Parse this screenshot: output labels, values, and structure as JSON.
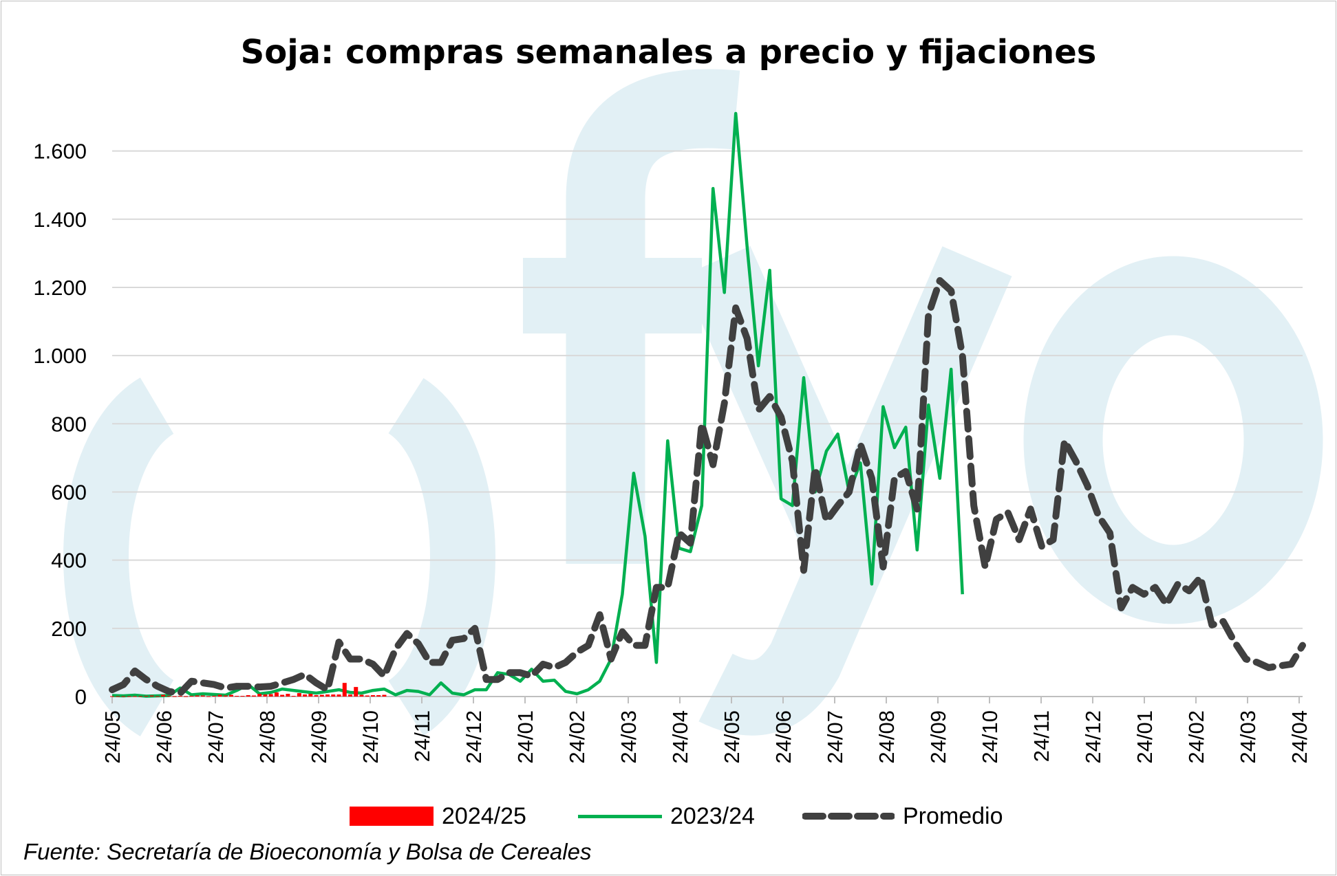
{
  "chart_data": {
    "type": "line",
    "title": "Soja: compras semanales a precio y fijaciones",
    "source": "Fuente: Secretaría de Bioeconomía y Bolsa de Cereales",
    "ylim": [
      0,
      1700
    ],
    "yticks": [
      0,
      200,
      400,
      600,
      800,
      1000,
      1200,
      1400,
      1600
    ],
    "ytick_labels": [
      "0",
      "200",
      "400",
      "600",
      "800",
      "1.000",
      "1.200",
      "1.400",
      "1.600"
    ],
    "xtick_labels": [
      "24/05",
      "24/06",
      "24/07",
      "24/08",
      "24/09",
      "24/10",
      "24/11",
      "24/12",
      "24/01",
      "24/02",
      "24/03",
      "24/04",
      "24/05",
      "24/06",
      "24/07",
      "24/08",
      "24/09",
      "24/10",
      "24/11",
      "24/12",
      "24/01",
      "24/02",
      "24/03",
      "24/04"
    ],
    "grid": true,
    "legend": "bottom",
    "colors": {
      "s2024": "#ff0000",
      "s2023": "#00b050",
      "prom": "#404040",
      "watermark": "#e2f0f5"
    },
    "series": [
      {
        "name": "2024/25",
        "style": "bar",
        "points": [
          [
            0,
            1
          ],
          [
            1,
            1
          ],
          [
            2,
            1
          ],
          [
            3,
            1
          ],
          [
            4,
            1
          ],
          [
            5,
            1
          ],
          [
            6,
            2
          ],
          [
            7,
            3
          ],
          [
            8,
            1
          ],
          [
            9,
            5
          ],
          [
            10,
            2
          ],
          [
            11,
            1
          ],
          [
            12,
            2
          ],
          [
            13,
            1
          ],
          [
            14,
            2
          ],
          [
            15,
            3
          ],
          [
            16,
            3
          ],
          [
            17,
            1
          ],
          [
            18,
            2
          ],
          [
            19,
            5
          ],
          [
            20,
            3
          ],
          [
            21,
            5
          ],
          [
            22,
            2
          ],
          [
            23,
            2
          ],
          [
            24,
            4
          ],
          [
            25,
            3
          ],
          [
            26,
            8
          ],
          [
            27,
            6
          ],
          [
            28,
            7
          ],
          [
            29,
            12
          ],
          [
            30,
            5
          ],
          [
            31,
            8
          ],
          [
            32,
            2
          ],
          [
            33,
            10
          ],
          [
            34,
            6
          ],
          [
            35,
            8
          ],
          [
            36,
            4
          ],
          [
            37,
            5
          ],
          [
            38,
            6
          ],
          [
            39,
            6
          ],
          [
            40,
            6
          ],
          [
            41,
            40
          ],
          [
            42,
            6
          ],
          [
            43,
            28
          ],
          [
            44,
            5
          ],
          [
            45,
            3
          ],
          [
            46,
            4
          ],
          [
            47,
            4
          ],
          [
            48,
            5
          ]
        ]
      },
      {
        "name": "2023/24",
        "style": "line",
        "points": [
          [
            0,
            3
          ],
          [
            2,
            2
          ],
          [
            4,
            4
          ],
          [
            6,
            1
          ],
          [
            8,
            2
          ],
          [
            10,
            3
          ],
          [
            12,
            25
          ],
          [
            14,
            5
          ],
          [
            16,
            8
          ],
          [
            18,
            6
          ],
          [
            20,
            4
          ],
          [
            22,
            18
          ],
          [
            24,
            35
          ],
          [
            26,
            8
          ],
          [
            28,
            12
          ],
          [
            30,
            22
          ],
          [
            32,
            18
          ],
          [
            34,
            14
          ],
          [
            36,
            10
          ],
          [
            38,
            15
          ],
          [
            40,
            20
          ],
          [
            42,
            12
          ],
          [
            44,
            10
          ],
          [
            46,
            18
          ],
          [
            48,
            22
          ],
          [
            50,
            5
          ],
          [
            52,
            18
          ],
          [
            54,
            15
          ],
          [
            56,
            5
          ],
          [
            58,
            40
          ],
          [
            60,
            10
          ],
          [
            62,
            5
          ],
          [
            64,
            20
          ],
          [
            66,
            20
          ],
          [
            68,
            70
          ],
          [
            70,
            65
          ],
          [
            72,
            45
          ],
          [
            74,
            80
          ],
          [
            76,
            45
          ],
          [
            78,
            48
          ],
          [
            80,
            15
          ],
          [
            82,
            8
          ],
          [
            84,
            20
          ],
          [
            86,
            45
          ],
          [
            88,
            110
          ],
          [
            90,
            300
          ],
          [
            92,
            655
          ],
          [
            94,
            470
          ],
          [
            96,
            100
          ],
          [
            98,
            750
          ],
          [
            100,
            435
          ],
          [
            102,
            425
          ],
          [
            104,
            560
          ],
          [
            106,
            1490
          ],
          [
            108,
            1185
          ],
          [
            110,
            1710
          ],
          [
            112,
            1320
          ],
          [
            114,
            970
          ],
          [
            116,
            1250
          ],
          [
            118,
            580
          ],
          [
            120,
            560
          ],
          [
            122,
            935
          ],
          [
            124,
            600
          ],
          [
            126,
            720
          ],
          [
            128,
            770
          ],
          [
            130,
            600
          ],
          [
            132,
            685
          ],
          [
            134,
            330
          ],
          [
            136,
            850
          ],
          [
            138,
            730
          ],
          [
            140,
            790
          ],
          [
            142,
            430
          ],
          [
            144,
            855
          ],
          [
            146,
            640
          ],
          [
            148,
            960
          ],
          [
            150,
            300
          ]
        ]
      },
      {
        "name": "Promedio",
        "style": "dashed",
        "points": [
          [
            0,
            20
          ],
          [
            2,
            35
          ],
          [
            4,
            75
          ],
          [
            6,
            50
          ],
          [
            8,
            30
          ],
          [
            10,
            15
          ],
          [
            12,
            10
          ],
          [
            14,
            45
          ],
          [
            16,
            40
          ],
          [
            18,
            35
          ],
          [
            20,
            25
          ],
          [
            22,
            30
          ],
          [
            24,
            30
          ],
          [
            26,
            28
          ],
          [
            28,
            30
          ],
          [
            30,
            40
          ],
          [
            32,
            50
          ],
          [
            34,
            65
          ],
          [
            36,
            40
          ],
          [
            38,
            20
          ],
          [
            40,
            160
          ],
          [
            42,
            110
          ],
          [
            44,
            110
          ],
          [
            46,
            95
          ],
          [
            48,
            60
          ],
          [
            50,
            140
          ],
          [
            52,
            185
          ],
          [
            54,
            155
          ],
          [
            56,
            100
          ],
          [
            58,
            100
          ],
          [
            60,
            165
          ],
          [
            62,
            170
          ],
          [
            64,
            200
          ],
          [
            66,
            50
          ],
          [
            68,
            50
          ],
          [
            70,
            70
          ],
          [
            72,
            70
          ],
          [
            74,
            60
          ],
          [
            76,
            95
          ],
          [
            78,
            85
          ],
          [
            80,
            100
          ],
          [
            82,
            130
          ],
          [
            84,
            150
          ],
          [
            86,
            240
          ],
          [
            88,
            110
          ],
          [
            90,
            190
          ],
          [
            92,
            150
          ],
          [
            94,
            150
          ],
          [
            96,
            320
          ],
          [
            98,
            320
          ],
          [
            100,
            480
          ],
          [
            102,
            450
          ],
          [
            104,
            800
          ],
          [
            106,
            680
          ],
          [
            108,
            860
          ],
          [
            110,
            1140
          ],
          [
            112,
            1050
          ],
          [
            114,
            840
          ],
          [
            116,
            880
          ],
          [
            118,
            820
          ],
          [
            120,
            690
          ],
          [
            122,
            370
          ],
          [
            124,
            670
          ],
          [
            126,
            515
          ],
          [
            128,
            560
          ],
          [
            130,
            600
          ],
          [
            132,
            740
          ],
          [
            134,
            640
          ],
          [
            136,
            380
          ],
          [
            138,
            640
          ],
          [
            140,
            660
          ],
          [
            142,
            550
          ],
          [
            144,
            1120
          ],
          [
            146,
            1220
          ],
          [
            148,
            1190
          ],
          [
            150,
            1000
          ],
          [
            152,
            560
          ],
          [
            154,
            380
          ],
          [
            156,
            520
          ],
          [
            158,
            540
          ],
          [
            160,
            460
          ],
          [
            162,
            550
          ],
          [
            164,
            440
          ],
          [
            166,
            460
          ],
          [
            168,
            750
          ],
          [
            170,
            690
          ],
          [
            172,
            620
          ],
          [
            174,
            530
          ],
          [
            176,
            480
          ],
          [
            178,
            260
          ],
          [
            180,
            320
          ],
          [
            182,
            300
          ],
          [
            184,
            320
          ],
          [
            186,
            270
          ],
          [
            188,
            330
          ],
          [
            190,
            310
          ],
          [
            192,
            350
          ],
          [
            194,
            210
          ],
          [
            196,
            220
          ],
          [
            198,
            160
          ],
          [
            200,
            110
          ],
          [
            202,
            100
          ],
          [
            204,
            85
          ],
          [
            206,
            90
          ],
          [
            208,
            95
          ],
          [
            210,
            150
          ]
        ]
      }
    ]
  },
  "legend_labels": [
    "2024/25",
    "2023/24",
    "Promedio"
  ]
}
